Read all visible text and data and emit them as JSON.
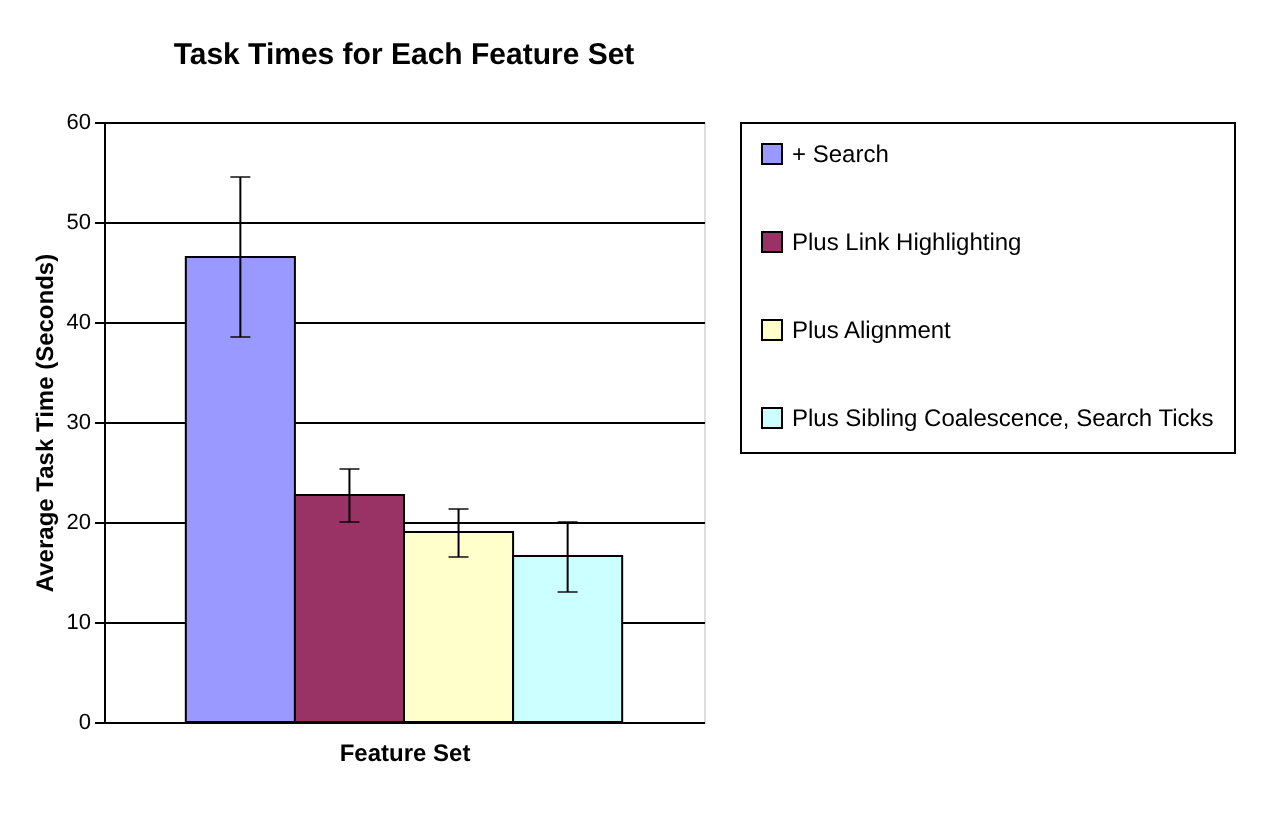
{
  "chart_data": {
    "type": "bar",
    "title": "Task Times for Each Feature Set",
    "xlabel": "Feature Set",
    "ylabel": "Average Task Time (Seconds)",
    "categories": [
      null
    ],
    "series": [
      {
        "name": "+ Search",
        "color": "#9999ff",
        "values": [
          46.5
        ],
        "errors": [
          [
            38.5,
            54.5
          ]
        ]
      },
      {
        "name": "Plus Link Highlighting",
        "color": "#993366",
        "values": [
          22.7
        ],
        "errors": [
          [
            20.0,
            25.3
          ]
        ]
      },
      {
        "name": "Plus Alignment",
        "color": "#ffffcc",
        "values": [
          19.0
        ],
        "errors": [
          [
            16.5,
            21.3
          ]
        ]
      },
      {
        "name": "Plus Sibling Coalescence, Search Ticks",
        "color": "#ccffff",
        "values": [
          16.6
        ],
        "errors": [
          [
            13.0,
            20.0
          ]
        ]
      }
    ],
    "ylim": [
      0,
      60
    ],
    "yticks": [
      0,
      10,
      20,
      30,
      40,
      50,
      60
    ],
    "grid": "y",
    "legend": "right",
    "tick_labels": "y"
  }
}
